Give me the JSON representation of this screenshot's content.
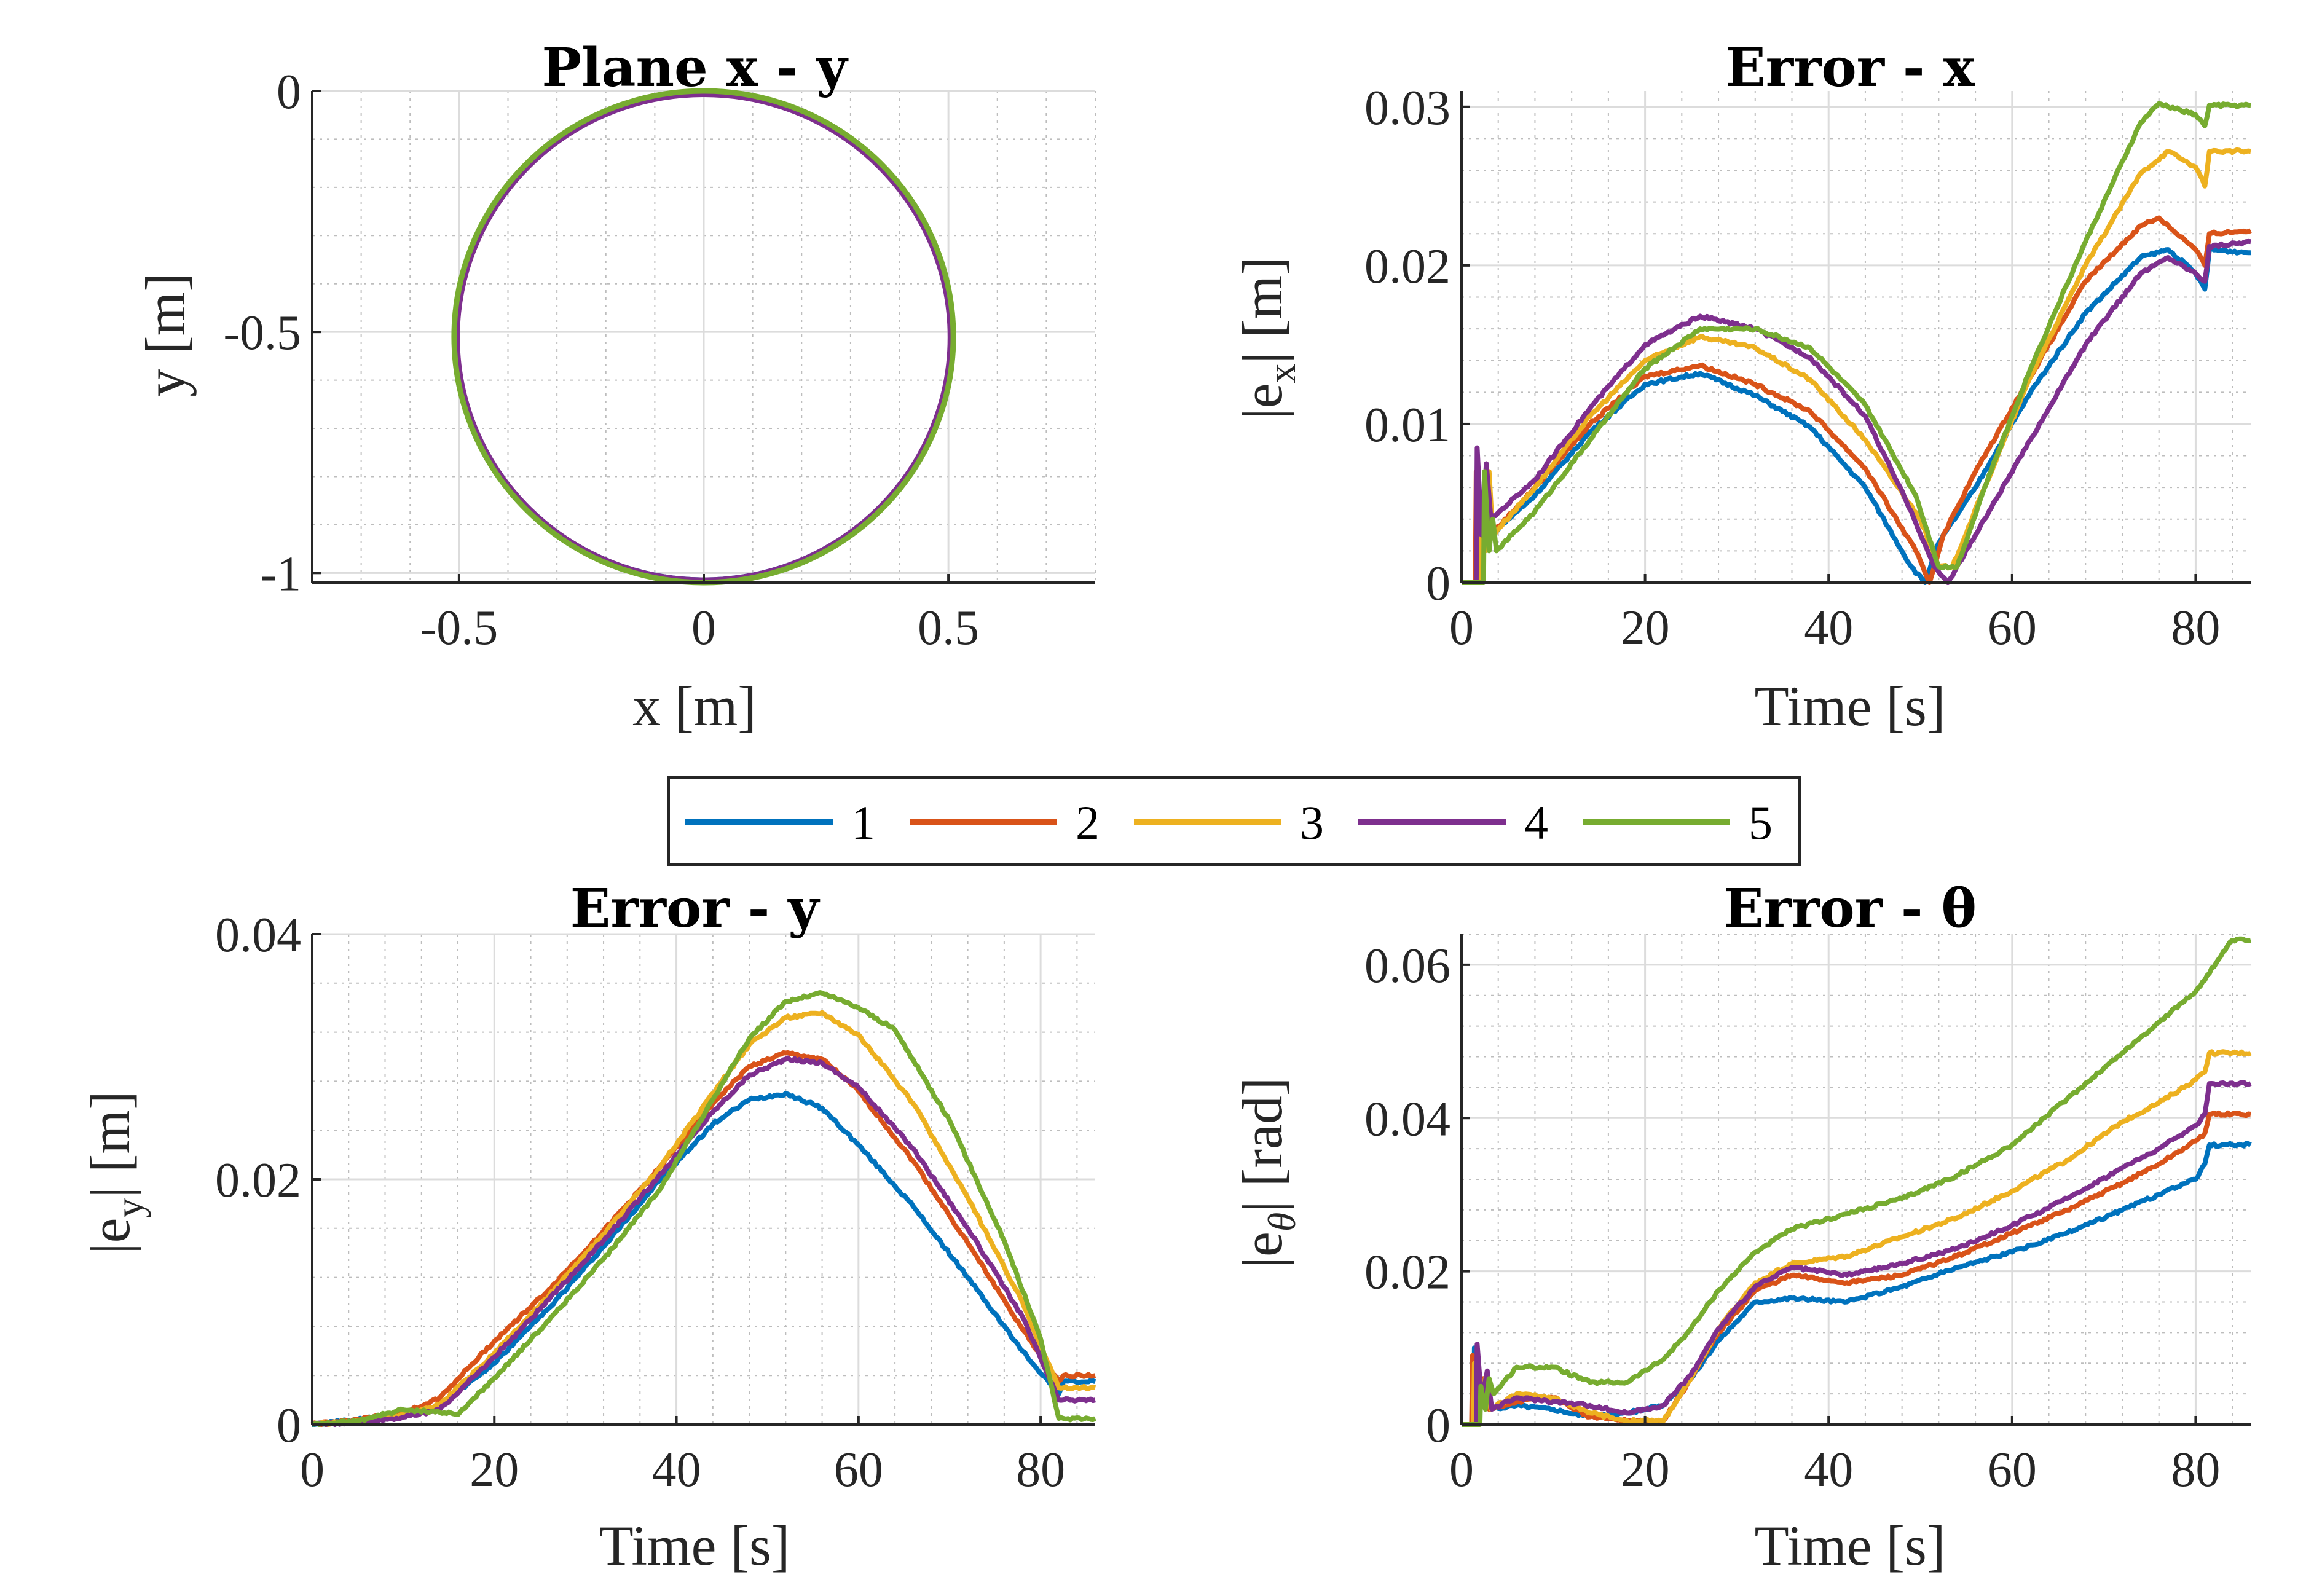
{
  "legend": {
    "placement": "center, between rows",
    "entries": [
      {
        "label": "1",
        "color": "#0072BD"
      },
      {
        "label": "2",
        "color": "#D95319"
      },
      {
        "label": "3",
        "color": "#EDB120"
      },
      {
        "label": "4",
        "color": "#7E2F8E"
      },
      {
        "label": "5",
        "color": "#77AC30"
      }
    ]
  },
  "chart_data": [
    {
      "id": "plane",
      "type": "line",
      "title": "Plane x - y",
      "xlabel": "x [m]",
      "ylabel": "y [m]",
      "xlim": [
        -0.8,
        0.8
      ],
      "ylim": [
        -1.02,
        0
      ],
      "xticks": [
        -0.5,
        0,
        0.5
      ],
      "yticks": [
        0,
        -0.5,
        -1
      ],
      "xtick_labels": [
        "-0.5",
        "0",
        "0.5"
      ],
      "ytick_labels": [
        "0",
        "-0.5",
        "-1"
      ],
      "grid": true,
      "trajectory": {
        "shape": "circle",
        "center": [
          0,
          -0.51
        ],
        "radius": 0.51
      },
      "series": [
        {
          "legend": "1",
          "center": [
            0,
            -0.51
          ],
          "radius": 0.505
        },
        {
          "legend": "2",
          "center": [
            0,
            -0.51
          ],
          "radius": 0.507
        },
        {
          "legend": "3",
          "center": [
            0,
            -0.51
          ],
          "radius": 0.509
        },
        {
          "legend": "4",
          "center": [
            0,
            -0.511
          ],
          "radius": 0.504
        },
        {
          "legend": "5",
          "center": [
            0,
            -0.51
          ],
          "radius": 0.51
        }
      ]
    },
    {
      "id": "ex",
      "type": "line",
      "title": "Error - x",
      "xlabel": "Time [s]",
      "ylabel": "|e",
      "ylabel_sub": "x",
      "ylabel_tail": "| [m]",
      "xlim": [
        0,
        86
      ],
      "ylim": [
        0,
        0.031
      ],
      "xticks": [
        0,
        20,
        40,
        60,
        80
      ],
      "yticks": [
        0,
        0.01,
        0.02,
        0.03
      ],
      "xtick_labels": [
        "0",
        "20",
        "40",
        "60",
        "80"
      ],
      "ytick_labels": [
        "0",
        "0.01",
        "0.02",
        "0.03"
      ],
      "grid": true,
      "series": [
        {
          "legend": "1",
          "x": [
            0,
            1.7,
            1.8,
            2.3,
            2.8,
            3.2,
            8,
            14,
            20,
            26,
            32,
            38,
            44,
            49,
            50.5,
            52,
            56,
            62,
            68,
            74,
            77,
            80,
            81,
            81.5,
            86
          ],
          "y": [
            0,
            0,
            0.006,
            0.002,
            0.005,
            0.003,
            0.0055,
            0.0095,
            0.0125,
            0.0132,
            0.0118,
            0.0098,
            0.006,
            0.001,
            0,
            0.0025,
            0.006,
            0.012,
            0.017,
            0.0205,
            0.021,
            0.0195,
            0.0185,
            0.021,
            0.0208
          ]
        },
        {
          "legend": "2",
          "x": [
            0,
            1.5,
            1.6,
            2.1,
            2.8,
            3.2,
            8,
            14,
            20,
            26,
            32,
            38,
            44,
            49.5,
            51,
            52.5,
            56,
            62,
            68,
            74,
            76,
            80,
            81,
            81.5,
            86
          ],
          "y": [
            0,
            0,
            0.007,
            0.002,
            0.006,
            0.003,
            0.006,
            0.01,
            0.013,
            0.0137,
            0.0125,
            0.0108,
            0.0072,
            0.002,
            0,
            0.003,
            0.007,
            0.013,
            0.019,
            0.0225,
            0.023,
            0.021,
            0.02,
            0.022,
            0.0222
          ]
        },
        {
          "legend": "3",
          "x": [
            0,
            2,
            2.1,
            2.6,
            3,
            3.4,
            8,
            14,
            20,
            26,
            32,
            38,
            44,
            50,
            52,
            53.5,
            57,
            62,
            68,
            74,
            77,
            80,
            81,
            81.5,
            86
          ],
          "y": [
            0,
            0,
            0.005,
            0.002,
            0.007,
            0.003,
            0.006,
            0.0105,
            0.014,
            0.0155,
            0.0148,
            0.0128,
            0.009,
            0.004,
            0.001,
            0.001,
            0.006,
            0.013,
            0.02,
            0.0258,
            0.0272,
            0.0262,
            0.025,
            0.0272,
            0.0272
          ]
        },
        {
          "legend": "4",
          "x": [
            0,
            1.6,
            1.7,
            2.2,
            2.7,
            3.2,
            8,
            14,
            20,
            26,
            32,
            38,
            44,
            49,
            51.5,
            53,
            56,
            62,
            68,
            74,
            77,
            80,
            81,
            81.5,
            86
          ],
          "y": [
            0,
            0,
            0.0085,
            0.003,
            0.0075,
            0.004,
            0.0065,
            0.011,
            0.015,
            0.0168,
            0.016,
            0.0142,
            0.0105,
            0.0045,
            0.001,
            0,
            0.003,
            0.009,
            0.015,
            0.0195,
            0.0205,
            0.0195,
            0.019,
            0.0212,
            0.0215
          ]
        },
        {
          "legend": "5",
          "x": [
            0,
            2.4,
            2.5,
            3,
            3.4,
            3.8,
            8,
            14,
            20,
            26,
            32,
            38,
            44,
            49.5,
            52,
            54,
            57,
            62,
            68,
            74,
            76,
            80,
            81,
            81.5,
            86
          ],
          "y": [
            0,
            0,
            0.007,
            0.002,
            0.004,
            0.002,
            0.0045,
            0.009,
            0.0135,
            0.016,
            0.016,
            0.0148,
            0.0112,
            0.0055,
            0.001,
            0.001,
            0.006,
            0.0135,
            0.0215,
            0.029,
            0.0302,
            0.0295,
            0.0288,
            0.0301,
            0.0301
          ]
        }
      ]
    },
    {
      "id": "ey",
      "type": "line",
      "title": "Error - y",
      "xlabel": "Time [s]",
      "ylabel": "|e",
      "ylabel_sub": "y",
      "ylabel_tail": "| [m]",
      "xlim": [
        0,
        86
      ],
      "ylim": [
        0,
        0.04
      ],
      "xticks": [
        0,
        20,
        40,
        60,
        80
      ],
      "yticks": [
        0,
        0.02,
        0.04
      ],
      "xtick_labels": [
        "0",
        "20",
        "40",
        "60",
        "80"
      ],
      "ytick_labels": [
        "0",
        "0.02",
        "0.04"
      ],
      "grid": true,
      "series": [
        {
          "legend": "1",
          "x": [
            0,
            5,
            10,
            14,
            20,
            26,
            32,
            38,
            44,
            48,
            52,
            56,
            60,
            66,
            72,
            78,
            82,
            82.5,
            86
          ],
          "y": [
            0,
            0.0004,
            0.0008,
            0.0015,
            0.005,
            0.0095,
            0.0145,
            0.0198,
            0.0245,
            0.0265,
            0.027,
            0.0258,
            0.0228,
            0.0178,
            0.012,
            0.006,
            0.0025,
            0.0035,
            0.0035
          ]
        },
        {
          "legend": "2",
          "x": [
            0,
            5,
            10,
            14,
            20,
            26,
            32,
            38,
            44,
            48,
            52,
            56,
            60,
            66,
            72,
            78,
            82,
            82.5,
            86
          ],
          "y": [
            0,
            0.0004,
            0.0009,
            0.0022,
            0.0068,
            0.011,
            0.0158,
            0.0208,
            0.0262,
            0.0292,
            0.0303,
            0.0298,
            0.0272,
            0.0215,
            0.0148,
            0.0078,
            0.0035,
            0.004,
            0.004
          ]
        },
        {
          "legend": "3",
          "x": [
            0,
            5,
            10,
            14,
            20,
            26,
            32,
            38,
            44,
            48,
            52,
            56,
            60,
            66,
            72,
            78,
            82,
            82.5,
            86
          ],
          "y": [
            0,
            0.0003,
            0.0008,
            0.0016,
            0.0058,
            0.0105,
            0.0155,
            0.0208,
            0.027,
            0.031,
            0.0332,
            0.0336,
            0.0318,
            0.0262,
            0.0185,
            0.01,
            0.003,
            0.003,
            0.003
          ]
        },
        {
          "legend": "4",
          "x": [
            0,
            5,
            10,
            14,
            20,
            26,
            32,
            38,
            44,
            48,
            52,
            56,
            60,
            66,
            72,
            78,
            82,
            82.5,
            86
          ],
          "y": [
            0,
            0.0002,
            0.0006,
            0.0012,
            0.0055,
            0.0102,
            0.015,
            0.0202,
            0.0255,
            0.0285,
            0.0298,
            0.0295,
            0.0275,
            0.0225,
            0.016,
            0.0088,
            0.002,
            0.002,
            0.002
          ]
        },
        {
          "legend": "5",
          "x": [
            0,
            5,
            10,
            14,
            16,
            20,
            26,
            32,
            38,
            44,
            48,
            52,
            56,
            60,
            64,
            70,
            76,
            80,
            82,
            82.5,
            86
          ],
          "y": [
            0,
            0.0003,
            0.0012,
            0.001,
            0.0008,
            0.0038,
            0.0085,
            0.0135,
            0.019,
            0.0265,
            0.0315,
            0.0345,
            0.0352,
            0.034,
            0.0322,
            0.0248,
            0.015,
            0.007,
            0.0005,
            0.0005,
            0.0005
          ]
        }
      ]
    },
    {
      "id": "eth",
      "type": "line",
      "title": "Error - θ",
      "xlabel": "Time [s]",
      "ylabel": "|e",
      "ylabel_sub": "θ",
      "ylabel_tail": "| [rad]",
      "xlim": [
        0,
        86
      ],
      "ylim": [
        0,
        0.064
      ],
      "xticks": [
        0,
        20,
        40,
        60,
        80
      ],
      "yticks": [
        0,
        0.02,
        0.04,
        0.06
      ],
      "xtick_labels": [
        "0",
        "20",
        "40",
        "60",
        "80"
      ],
      "ytick_labels": [
        "0",
        "0.02",
        "0.04",
        "0.06"
      ],
      "grid": true,
      "series": [
        {
          "legend": "1",
          "x": [
            0,
            1.3,
            1.4,
            2,
            2.5,
            3,
            6,
            10,
            14,
            18,
            22,
            25,
            28,
            32,
            36,
            42,
            48,
            54,
            60,
            66,
            72,
            76,
            80,
            81,
            81.5,
            86
          ],
          "y": [
            0,
            0,
            0.01,
            0.002,
            0.005,
            0.002,
            0.0025,
            0.002,
            0.001,
            0.0015,
            0.0025,
            0.006,
            0.011,
            0.016,
            0.0165,
            0.016,
            0.018,
            0.0205,
            0.0225,
            0.025,
            0.028,
            0.03,
            0.032,
            0.034,
            0.0365,
            0.0365
          ]
        },
        {
          "legend": "2",
          "x": [
            0,
            1.1,
            1.2,
            1.8,
            2.4,
            3,
            6,
            10,
            14,
            18,
            22,
            25,
            28,
            32,
            36,
            42,
            48,
            54,
            60,
            66,
            72,
            76,
            80,
            81,
            81.5,
            86
          ],
          "y": [
            0,
            0,
            0.009,
            0.003,
            0.006,
            0.002,
            0.003,
            0.0035,
            0.001,
            0.0005,
            0.0005,
            0.006,
            0.012,
            0.0175,
            0.0195,
            0.0185,
            0.0195,
            0.022,
            0.025,
            0.028,
            0.0315,
            0.034,
            0.037,
            0.038,
            0.0405,
            0.0405
          ]
        },
        {
          "legend": "3",
          "x": [
            0,
            1.3,
            1.4,
            2,
            2.6,
            3.2,
            6,
            10,
            14,
            18,
            22,
            25,
            28,
            32,
            36,
            42,
            48,
            54,
            60,
            66,
            72,
            76,
            80,
            81,
            81.5,
            86
          ],
          "y": [
            0,
            0,
            0.008,
            0.002,
            0.006,
            0.002,
            0.004,
            0.0035,
            0.0015,
            0.0005,
            0.0005,
            0.006,
            0.0125,
            0.0185,
            0.021,
            0.022,
            0.0245,
            0.027,
            0.0305,
            0.0345,
            0.0395,
            0.042,
            0.045,
            0.046,
            0.0485,
            0.0485
          ]
        },
        {
          "legend": "4",
          "x": [
            0,
            1.6,
            1.7,
            2.2,
            2.8,
            3.3,
            6,
            10,
            14,
            18,
            22,
            25,
            28,
            32,
            36,
            42,
            48,
            54,
            60,
            66,
            72,
            76,
            80,
            81,
            81.5,
            86
          ],
          "y": [
            0,
            0,
            0.0105,
            0.003,
            0.007,
            0.002,
            0.0035,
            0.003,
            0.0025,
            0.0015,
            0.0025,
            0.0065,
            0.0125,
            0.018,
            0.0205,
            0.0195,
            0.021,
            0.023,
            0.026,
            0.0295,
            0.0335,
            0.036,
            0.039,
            0.0405,
            0.0445,
            0.0445
          ]
        },
        {
          "legend": "5",
          "x": [
            0,
            2,
            2.1,
            2.6,
            3,
            3.5,
            6,
            10,
            14,
            18,
            22,
            25,
            28,
            32,
            36,
            42,
            48,
            54,
            60,
            66,
            72,
            76,
            80,
            84,
            86
          ],
          "y": [
            0,
            0,
            0.005,
            0.002,
            0.006,
            0.004,
            0.0075,
            0.0075,
            0.0055,
            0.0055,
            0.0085,
            0.0125,
            0.0175,
            0.0225,
            0.0255,
            0.0275,
            0.0295,
            0.0325,
            0.0365,
            0.0425,
            0.0485,
            0.0525,
            0.0565,
            0.0632,
            0.0632
          ]
        }
      ]
    }
  ]
}
